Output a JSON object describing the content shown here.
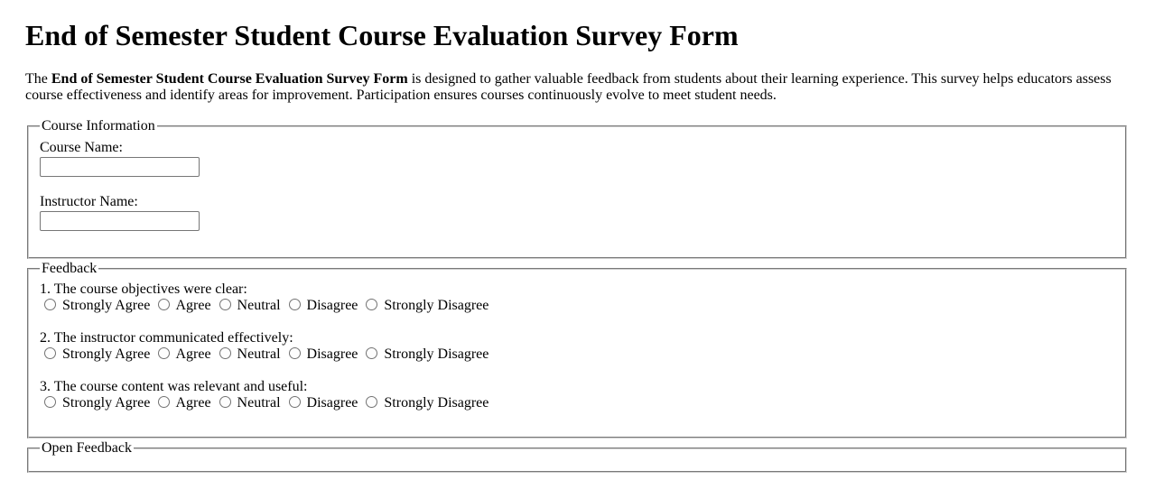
{
  "page": {
    "title": "End of Semester Student Course Evaluation Survey Form",
    "intro": {
      "prefix": "The ",
      "bold": "End of Semester Student Course Evaluation Survey Form",
      "suffix": " is designed to gather valuable feedback from students about their learning experience. This survey helps educators assess course effectiveness and identify areas for improvement. Participation ensures courses continuously evolve to meet student needs."
    }
  },
  "course_info_section": {
    "legend": "Course Information",
    "fields": [
      {
        "label": "Course Name:",
        "value": ""
      },
      {
        "label": "Instructor Name:",
        "value": ""
      }
    ]
  },
  "feedback_section": {
    "legend": "Feedback",
    "questions": [
      "1. The course objectives were clear:",
      "2. The instructor communicated effectively:",
      "3. The course content was relevant and useful:"
    ],
    "options": [
      "Strongly Agree",
      "Agree",
      "Neutral",
      "Disagree",
      "Strongly Disagree"
    ]
  },
  "open_feedback_section": {
    "legend": "Open Feedback"
  },
  "colors": {
    "background": "#ffffff",
    "text": "#000000",
    "fieldset_border": "#cdcdcd",
    "input_border": "#767676",
    "radio_border": "#737373"
  }
}
